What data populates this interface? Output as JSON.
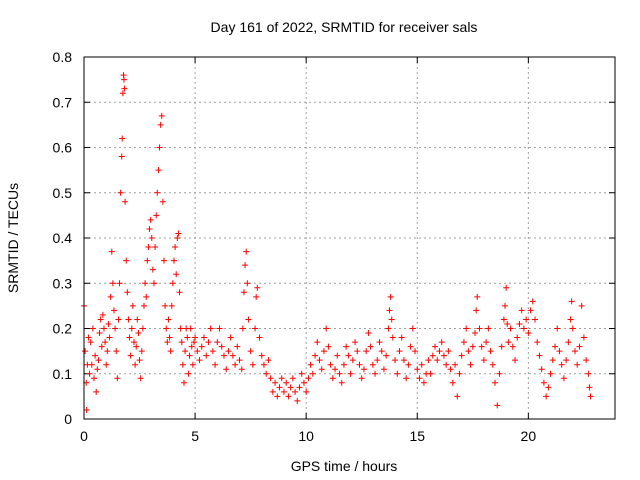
{
  "chart_data": {
    "type": "scatter",
    "title": "Day 161 of 2022, SRMTID for receiver sals",
    "xlabel": "GPS time / hours",
    "ylabel": "SRMTID / TECUs",
    "xlim": [
      0,
      23.9
    ],
    "ylim": [
      0,
      0.8
    ],
    "xticks": [
      0,
      5,
      10,
      15,
      20
    ],
    "xtick_labels": [
      "0",
      "5",
      "10",
      "15",
      "20"
    ],
    "yticks": [
      0,
      0.1,
      0.2,
      0.3,
      0.4,
      0.5,
      0.6,
      0.7,
      0.8
    ],
    "ytick_labels": [
      "0",
      "0.1",
      "0.2",
      "0.3",
      "0.4",
      "0.5",
      "0.6",
      "0.7",
      "0.8"
    ],
    "grid": true,
    "marker": "plus",
    "color": "#ff0000",
    "series": [
      {
        "name": "sals",
        "points": [
          [
            0.0,
            0.25
          ],
          [
            0.05,
            0.15
          ],
          [
            0.1,
            0.08
          ],
          [
            0.12,
            0.02
          ],
          [
            0.15,
            0.12
          ],
          [
            0.2,
            0.18
          ],
          [
            0.25,
            0.1
          ],
          [
            0.3,
            0.17
          ],
          [
            0.35,
            0.12
          ],
          [
            0.4,
            0.2
          ],
          [
            0.45,
            0.09
          ],
          [
            0.5,
            0.14
          ],
          [
            0.55,
            0.06
          ],
          [
            0.6,
            0.11
          ],
          [
            0.65,
            0.13
          ],
          [
            0.7,
            0.19
          ],
          [
            0.75,
            0.22
          ],
          [
            0.8,
            0.16
          ],
          [
            0.85,
            0.23
          ],
          [
            0.9,
            0.2
          ],
          [
            0.95,
            0.17
          ],
          [
            1.0,
            0.12
          ],
          [
            1.05,
            0.15
          ],
          [
            1.1,
            0.21
          ],
          [
            1.15,
            0.18
          ],
          [
            1.2,
            0.27
          ],
          [
            1.25,
            0.37
          ],
          [
            1.3,
            0.3
          ],
          [
            1.35,
            0.24
          ],
          [
            1.4,
            0.2
          ],
          [
            1.45,
            0.15
          ],
          [
            1.5,
            0.09
          ],
          [
            1.55,
            0.22
          ],
          [
            1.6,
            0.3
          ],
          [
            1.65,
            0.5
          ],
          [
            1.7,
            0.58
          ],
          [
            1.72,
            0.62
          ],
          [
            1.75,
            0.72
          ],
          [
            1.78,
            0.76
          ],
          [
            1.8,
            0.75
          ],
          [
            1.82,
            0.73
          ],
          [
            1.85,
            0.48
          ],
          [
            1.9,
            0.35
          ],
          [
            1.95,
            0.28
          ],
          [
            2.0,
            0.22
          ],
          [
            2.05,
            0.18
          ],
          [
            2.1,
            0.14
          ],
          [
            2.15,
            0.2
          ],
          [
            2.2,
            0.25
          ],
          [
            2.25,
            0.17
          ],
          [
            2.3,
            0.12
          ],
          [
            2.35,
            0.16
          ],
          [
            2.4,
            0.22
          ],
          [
            2.45,
            0.19
          ],
          [
            2.5,
            0.13
          ],
          [
            2.55,
            0.09
          ],
          [
            2.6,
            0.15
          ],
          [
            2.65,
            0.2
          ],
          [
            2.7,
            0.25
          ],
          [
            2.75,
            0.3
          ],
          [
            2.8,
            0.27
          ],
          [
            2.85,
            0.35
          ],
          [
            2.9,
            0.38
          ],
          [
            2.95,
            0.42
          ],
          [
            3.0,
            0.44
          ],
          [
            3.05,
            0.4
          ],
          [
            3.1,
            0.33
          ],
          [
            3.15,
            0.3
          ],
          [
            3.2,
            0.38
          ],
          [
            3.25,
            0.45
          ],
          [
            3.3,
            0.5
          ],
          [
            3.35,
            0.55
          ],
          [
            3.4,
            0.6
          ],
          [
            3.45,
            0.65
          ],
          [
            3.5,
            0.67
          ],
          [
            3.55,
            0.48
          ],
          [
            3.6,
            0.35
          ],
          [
            3.65,
            0.25
          ],
          [
            3.7,
            0.2
          ],
          [
            3.75,
            0.17
          ],
          [
            3.8,
            0.22
          ],
          [
            3.85,
            0.18
          ],
          [
            3.9,
            0.15
          ],
          [
            3.95,
            0.25
          ],
          [
            4.0,
            0.3
          ],
          [
            4.05,
            0.35
          ],
          [
            4.1,
            0.38
          ],
          [
            4.15,
            0.32
          ],
          [
            4.2,
            0.4
          ],
          [
            4.25,
            0.41
          ],
          [
            4.3,
            0.28
          ],
          [
            4.35,
            0.2
          ],
          [
            4.4,
            0.17
          ],
          [
            4.45,
            0.12
          ],
          [
            4.5,
            0.08
          ],
          [
            4.55,
            0.15
          ],
          [
            4.6,
            0.2
          ],
          [
            4.65,
            0.18
          ],
          [
            4.7,
            0.1
          ],
          [
            4.75,
            0.14
          ],
          [
            4.8,
            0.2
          ],
          [
            4.85,
            0.16
          ],
          [
            4.9,
            0.12
          ],
          [
            4.95,
            0.17
          ],
          [
            5.0,
            0.18
          ],
          [
            5.1,
            0.15
          ],
          [
            5.2,
            0.13
          ],
          [
            5.3,
            0.16
          ],
          [
            5.4,
            0.18
          ],
          [
            5.5,
            0.14
          ],
          [
            5.6,
            0.17
          ],
          [
            5.7,
            0.2
          ],
          [
            5.8,
            0.15
          ],
          [
            5.9,
            0.12
          ],
          [
            6.0,
            0.17
          ],
          [
            6.1,
            0.2
          ],
          [
            6.2,
            0.16
          ],
          [
            6.3,
            0.14
          ],
          [
            6.4,
            0.11
          ],
          [
            6.5,
            0.15
          ],
          [
            6.6,
            0.18
          ],
          [
            6.7,
            0.14
          ],
          [
            6.8,
            0.12
          ],
          [
            6.9,
            0.16
          ],
          [
            7.0,
            0.13
          ],
          [
            7.1,
            0.11
          ],
          [
            7.15,
            0.2
          ],
          [
            7.2,
            0.28
          ],
          [
            7.25,
            0.34
          ],
          [
            7.3,
            0.37
          ],
          [
            7.35,
            0.3
          ],
          [
            7.4,
            0.22
          ],
          [
            7.5,
            0.15
          ],
          [
            7.6,
            0.12
          ],
          [
            7.7,
            0.2
          ],
          [
            7.75,
            0.27
          ],
          [
            7.8,
            0.29
          ],
          [
            7.9,
            0.18
          ],
          [
            8.0,
            0.14
          ],
          [
            8.1,
            0.12
          ],
          [
            8.2,
            0.1
          ],
          [
            8.3,
            0.13
          ],
          [
            8.4,
            0.09
          ],
          [
            8.5,
            0.06
          ],
          [
            8.6,
            0.08
          ],
          [
            8.7,
            0.05
          ],
          [
            8.8,
            0.07
          ],
          [
            8.9,
            0.09
          ],
          [
            9.0,
            0.06
          ],
          [
            9.1,
            0.08
          ],
          [
            9.2,
            0.05
          ],
          [
            9.3,
            0.07
          ],
          [
            9.4,
            0.09
          ],
          [
            9.5,
            0.06
          ],
          [
            9.6,
            0.04
          ],
          [
            9.7,
            0.07
          ],
          [
            9.8,
            0.1
          ],
          [
            9.9,
            0.08
          ],
          [
            10.0,
            0.06
          ],
          [
            10.1,
            0.09
          ],
          [
            10.2,
            0.12
          ],
          [
            10.3,
            0.1
          ],
          [
            10.4,
            0.14
          ],
          [
            10.5,
            0.17
          ],
          [
            10.6,
            0.13
          ],
          [
            10.7,
            0.11
          ],
          [
            10.8,
            0.15
          ],
          [
            10.9,
            0.2
          ],
          [
            11.0,
            0.16
          ],
          [
            11.1,
            0.12
          ],
          [
            11.2,
            0.09
          ],
          [
            11.3,
            0.11
          ],
          [
            11.4,
            0.14
          ],
          [
            11.5,
            0.1
          ],
          [
            11.6,
            0.08
          ],
          [
            11.7,
            0.12
          ],
          [
            11.8,
            0.16
          ],
          [
            11.9,
            0.14
          ],
          [
            12.0,
            0.1
          ],
          [
            12.1,
            0.13
          ],
          [
            12.2,
            0.17
          ],
          [
            12.3,
            0.15
          ],
          [
            12.4,
            0.12
          ],
          [
            12.5,
            0.09
          ],
          [
            12.6,
            0.11
          ],
          [
            12.7,
            0.15
          ],
          [
            12.8,
            0.19
          ],
          [
            12.9,
            0.16
          ],
          [
            13.0,
            0.12
          ],
          [
            13.1,
            0.1
          ],
          [
            13.2,
            0.13
          ],
          [
            13.3,
            0.17
          ],
          [
            13.4,
            0.15
          ],
          [
            13.5,
            0.11
          ],
          [
            13.6,
            0.14
          ],
          [
            13.7,
            0.2
          ],
          [
            13.75,
            0.24
          ],
          [
            13.8,
            0.27
          ],
          [
            13.85,
            0.22
          ],
          [
            13.9,
            0.18
          ],
          [
            14.0,
            0.13
          ],
          [
            14.1,
            0.1
          ],
          [
            14.2,
            0.15
          ],
          [
            14.3,
            0.18
          ],
          [
            14.4,
            0.13
          ],
          [
            14.5,
            0.09
          ],
          [
            14.6,
            0.12
          ],
          [
            14.7,
            0.16
          ],
          [
            14.8,
            0.2
          ],
          [
            14.9,
            0.15
          ],
          [
            15.0,
            0.11
          ],
          [
            15.1,
            0.09
          ],
          [
            15.2,
            0.12
          ],
          [
            15.3,
            0.08
          ],
          [
            15.4,
            0.1
          ],
          [
            15.5,
            0.13
          ],
          [
            15.6,
            0.1
          ],
          [
            15.7,
            0.14
          ],
          [
            15.8,
            0.16
          ],
          [
            15.9,
            0.13
          ],
          [
            16.0,
            0.15
          ],
          [
            16.1,
            0.17
          ],
          [
            16.2,
            0.14
          ],
          [
            16.3,
            0.12
          ],
          [
            16.4,
            0.15
          ],
          [
            16.5,
            0.11
          ],
          [
            16.6,
            0.08
          ],
          [
            16.7,
            0.12
          ],
          [
            16.8,
            0.05
          ],
          [
            16.9,
            0.1
          ],
          [
            17.0,
            0.14
          ],
          [
            17.1,
            0.17
          ],
          [
            17.2,
            0.2
          ],
          [
            17.3,
            0.15
          ],
          [
            17.4,
            0.12
          ],
          [
            17.5,
            0.16
          ],
          [
            17.6,
            0.19
          ],
          [
            17.65,
            0.24
          ],
          [
            17.7,
            0.27
          ],
          [
            17.8,
            0.2
          ],
          [
            17.9,
            0.16
          ],
          [
            18.0,
            0.13
          ],
          [
            18.1,
            0.17
          ],
          [
            18.2,
            0.2
          ],
          [
            18.3,
            0.15
          ],
          [
            18.4,
            0.12
          ],
          [
            18.5,
            0.08
          ],
          [
            18.6,
            0.03
          ],
          [
            18.7,
            0.1
          ],
          [
            18.8,
            0.16
          ],
          [
            18.9,
            0.22
          ],
          [
            18.95,
            0.25
          ],
          [
            19.0,
            0.29
          ],
          [
            19.05,
            0.21
          ],
          [
            19.1,
            0.17
          ],
          [
            19.2,
            0.2
          ],
          [
            19.3,
            0.16
          ],
          [
            19.4,
            0.13
          ],
          [
            19.5,
            0.18
          ],
          [
            19.6,
            0.21
          ],
          [
            19.7,
            0.24
          ],
          [
            19.8,
            0.2
          ],
          [
            19.9,
            0.22
          ],
          [
            20.0,
            0.19
          ],
          [
            20.1,
            0.24
          ],
          [
            20.2,
            0.26
          ],
          [
            20.3,
            0.22
          ],
          [
            20.4,
            0.17
          ],
          [
            20.5,
            0.14
          ],
          [
            20.6,
            0.11
          ],
          [
            20.7,
            0.08
          ],
          [
            20.8,
            0.05
          ],
          [
            20.9,
            0.07
          ],
          [
            21.0,
            0.1
          ],
          [
            21.1,
            0.13
          ],
          [
            21.2,
            0.16
          ],
          [
            21.3,
            0.2
          ],
          [
            21.4,
            0.15
          ],
          [
            21.5,
            0.12
          ],
          [
            21.6,
            0.09
          ],
          [
            21.7,
            0.13
          ],
          [
            21.8,
            0.17
          ],
          [
            21.9,
            0.22
          ],
          [
            21.95,
            0.26
          ],
          [
            22.0,
            0.2
          ],
          [
            22.1,
            0.15
          ],
          [
            22.2,
            0.12
          ],
          [
            22.3,
            0.16
          ],
          [
            22.4,
            0.25
          ],
          [
            22.5,
            0.18
          ],
          [
            22.6,
            0.13
          ],
          [
            22.7,
            0.1
          ],
          [
            22.75,
            0.07
          ],
          [
            22.8,
            0.05
          ]
        ]
      }
    ]
  }
}
